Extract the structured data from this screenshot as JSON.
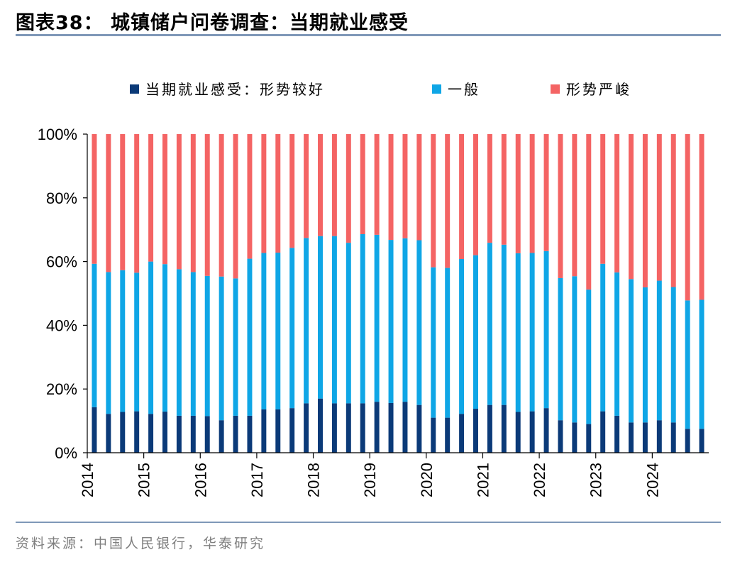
{
  "header": {
    "title": "图表38：  城镇储户问卷调查：当期就业感受"
  },
  "footer": {
    "source": "资料来源：中国人民银行，华泰研究"
  },
  "chart_data": {
    "type": "bar",
    "stacked": true,
    "y_tick_labels": [
      "0%",
      "20%",
      "40%",
      "60%",
      "80%",
      "100%"
    ],
    "ylim": [
      0,
      100
    ],
    "x_tick_labels": [
      "2014",
      "2015",
      "2016",
      "2017",
      "2018",
      "2019",
      "2020",
      "2021",
      "2022",
      "2023",
      "2024"
    ],
    "legend_position": "top",
    "colors": {
      "good": "#0b3a78",
      "normal": "#0fa6e6",
      "severe": "#f46464"
    },
    "categories": [
      "2014Q1",
      "2014Q2",
      "2014Q3",
      "2014Q4",
      "2015Q1",
      "2015Q2",
      "2015Q3",
      "2015Q4",
      "2016Q1",
      "2016Q2",
      "2016Q3",
      "2016Q4",
      "2017Q1",
      "2017Q2",
      "2017Q3",
      "2017Q4",
      "2018Q1",
      "2018Q2",
      "2018Q3",
      "2018Q4",
      "2019Q1",
      "2019Q2",
      "2019Q3",
      "2019Q4",
      "2020Q1",
      "2020Q2",
      "2020Q3",
      "2020Q4",
      "2021Q1",
      "2021Q2",
      "2021Q3",
      "2021Q4",
      "2022Q1",
      "2022Q2",
      "2022Q3",
      "2022Q4",
      "2023Q1",
      "2023Q2",
      "2023Q3",
      "2023Q4",
      "2024Q1",
      "2024Q2",
      "2024Q3",
      "2024Q4"
    ],
    "series": [
      {
        "name": "当期就业感受：形势较好",
        "values": [
          14.3,
          12.2,
          12.8,
          13.0,
          12.2,
          12.9,
          11.6,
          11.6,
          11.5,
          10.2,
          11.6,
          11.6,
          13.6,
          13.6,
          14.0,
          15.5,
          17.0,
          15.5,
          15.5,
          15.5,
          16.0,
          15.6,
          16.0,
          15.0,
          11.0,
          11.0,
          12.2,
          13.8,
          15.0,
          15.0,
          12.8,
          13.0,
          14.0,
          10.2,
          9.5,
          9.0,
          13.0,
          11.6,
          9.5,
          9.5,
          10.2,
          9.5,
          7.5,
          7.5
        ]
      },
      {
        "name": "一般",
        "values": [
          45.0,
          44.5,
          44.5,
          43.5,
          47.8,
          46.3,
          46.0,
          45.1,
          44.0,
          45.1,
          43.1,
          49.3,
          49.1,
          49.2,
          50.3,
          51.9,
          51.0,
          52.5,
          50.4,
          53.1,
          52.4,
          51.2,
          51.3,
          51.7,
          47.2,
          47.0,
          48.6,
          48.2,
          50.9,
          50.3,
          49.8,
          49.7,
          49.3,
          44.6,
          45.9,
          42.2,
          46.3,
          45.0,
          45.0,
          42.4,
          43.8,
          42.5,
          40.3,
          40.5
        ]
      },
      {
        "name": "形势严峻",
        "values": [
          40.7,
          43.3,
          42.7,
          43.5,
          40.0,
          40.8,
          42.4,
          43.3,
          44.5,
          44.7,
          45.3,
          39.1,
          37.3,
          37.2,
          35.7,
          32.6,
          32.0,
          32.0,
          34.1,
          31.4,
          31.6,
          33.2,
          32.7,
          33.3,
          41.8,
          42.0,
          39.2,
          38.0,
          34.1,
          34.7,
          37.4,
          37.3,
          36.7,
          45.2,
          44.6,
          48.8,
          40.7,
          43.4,
          45.5,
          48.1,
          46.0,
          48.0,
          52.2,
          52.0
        ]
      }
    ]
  }
}
